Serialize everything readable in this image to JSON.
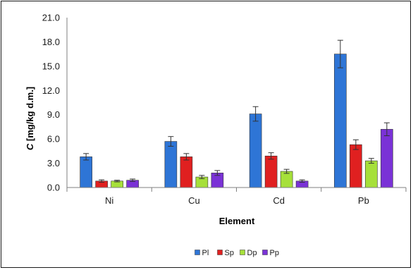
{
  "chart_data": {
    "type": "bar",
    "categories": [
      "Ni",
      "Cu",
      "Cd",
      "Pb"
    ],
    "series": [
      {
        "name": "Pl",
        "color": "#2e75d6",
        "values": [
          3.8,
          5.7,
          9.1,
          16.5
        ],
        "errors": [
          0.4,
          0.6,
          0.9,
          1.7
        ]
      },
      {
        "name": "Sp",
        "color": "#e02020",
        "values": [
          0.8,
          3.8,
          3.9,
          5.3
        ],
        "errors": [
          0.15,
          0.4,
          0.4,
          0.6
        ]
      },
      {
        "name": "Dp",
        "color": "#a6e03a",
        "values": [
          0.8,
          1.3,
          2.0,
          3.3
        ],
        "errors": [
          0.1,
          0.2,
          0.25,
          0.3
        ]
      },
      {
        "name": "Pp",
        "color": "#7a32d6",
        "values": [
          0.9,
          1.8,
          0.8,
          7.2
        ],
        "errors": [
          0.15,
          0.3,
          0.15,
          0.8
        ]
      }
    ],
    "y_ticks": [
      "0.0",
      "3.0",
      "6.0",
      "9.0",
      "12.0",
      "15.0",
      "18.0",
      "21.0"
    ],
    "ylim": [
      0,
      21
    ],
    "ylabel_italic": "C",
    "ylabel_rest": " [mg/kg d.m.]",
    "xlabel": "Element",
    "legend_position": "bottom-center",
    "grid": false
  }
}
